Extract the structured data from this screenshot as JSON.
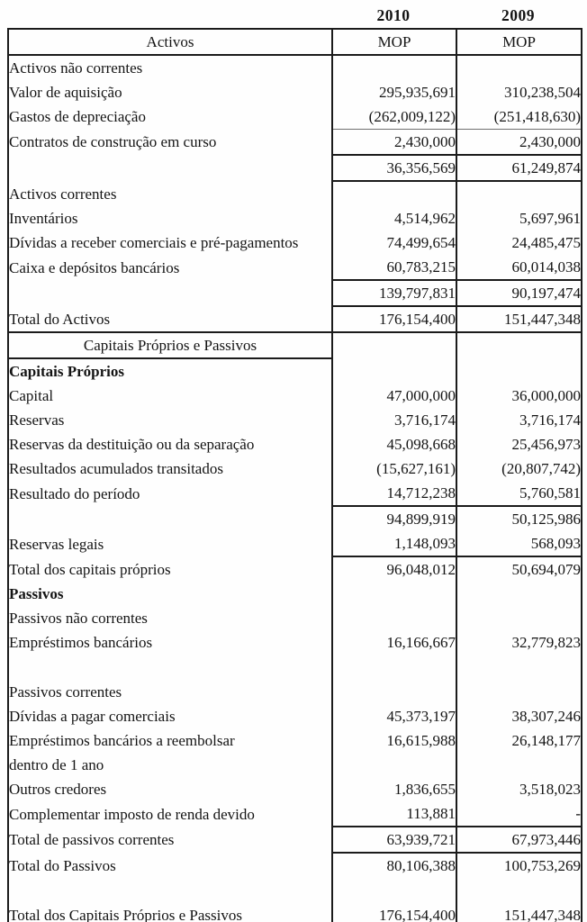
{
  "page": {
    "years": [
      "2010",
      "2009"
    ]
  },
  "table": {
    "rows": [
      {
        "label": "Activos",
        "v2010": "MOP",
        "v2009": "MOP",
        "center": true,
        "centerVals": true,
        "fullBottom": true
      },
      {
        "label": "Activos não correntes"
      },
      {
        "label": "Valor de aquisição",
        "v2010": "295,935,691",
        "v2009": "310,238,504"
      },
      {
        "label": "Gastos de depreciação",
        "v2010": "(262,009,122)",
        "v2009": "(251,418,630)"
      },
      {
        "label": "Contratos de construção em curso",
        "v2010": "2,430,000",
        "v2009": "2,430,000",
        "numTop": true,
        "numBottom": true
      },
      {
        "label": "",
        "v2010": "36,356,569",
        "v2009": "61,249,874",
        "numBottom": true
      },
      {
        "label": "Activos correntes"
      },
      {
        "label": "Inventários",
        "v2010": "4,514,962",
        "v2009": "5,697,961"
      },
      {
        "label": "Dívidas a receber comerciais e pré-pagamentos",
        "v2010": "74,499,654",
        "v2009": "24,485,475"
      },
      {
        "label": "Caixa e depósitos bancários",
        "v2010": "60,783,215",
        "v2009": "60,014,038",
        "numBottom": true
      },
      {
        "label": "",
        "v2010": "139,797,831",
        "v2009": "90,197,474",
        "numBottom": true
      },
      {
        "label": "Total do Activos",
        "v2010": "176,154,400",
        "v2009": "151,447,348",
        "fullBottom": true
      },
      {
        "label": "Capitais Próprios e Passivos",
        "center": true,
        "labelBottom": true
      },
      {
        "label": "Capitais Próprios",
        "bold": true
      },
      {
        "label": "Capital",
        "v2010": "47,000,000",
        "v2009": "36,000,000"
      },
      {
        "label": "Reservas",
        "v2010": "3,716,174",
        "v2009": "3,716,174"
      },
      {
        "label": "Reservas da destituição ou da separação",
        "v2010": "45,098,668",
        "v2009": "25,456,973"
      },
      {
        "label": "Resultados acumulados transitados",
        "v2010": "(15,627,161)",
        "v2009": "(20,807,742)"
      },
      {
        "label": "Resultado do período",
        "v2010": "14,712,238",
        "v2009": "5,760,581",
        "numBottom": true
      },
      {
        "label": "",
        "v2010": "94,899,919",
        "v2009": "50,125,986"
      },
      {
        "label": "Reservas legais",
        "v2010": "1,148,093",
        "v2009": "568,093",
        "numBottom": true
      },
      {
        "label": "Total dos capitais próprios",
        "v2010": "96,048,012",
        "v2009": "50,694,079"
      },
      {
        "label": "Passivos",
        "bold": true
      },
      {
        "label": "Passivos não correntes"
      },
      {
        "label": "Empréstimos bancários",
        "v2010": "16,166,667",
        "v2009": "32,779,823"
      },
      {
        "label": "",
        "spacer": true
      },
      {
        "label": "Passivos correntes"
      },
      {
        "label": "Dívidas a pagar comerciais",
        "v2010": "45,373,197",
        "v2009": "38,307,246"
      },
      {
        "label": "Empréstimos bancários a reembolsar",
        "v2010": "16,615,988",
        "v2009": "26,148,177"
      },
      {
        "label": "dentro de 1 ano",
        "indent": true
      },
      {
        "label": "Outros credores",
        "v2010": "1,836,655",
        "v2009": "3,518,023"
      },
      {
        "label": "Complementar imposto de renda devido",
        "v2010": "113,881",
        "v2009": "-",
        "numBottom": true
      },
      {
        "label": "Total de passivos correntes",
        "v2010": "63,939,721",
        "v2009": "67,973,446",
        "numBottom": true
      },
      {
        "label": "Total do Passivos",
        "v2010": "80,106,388",
        "v2009": "100,753,269"
      },
      {
        "label": "",
        "spacer": true
      },
      {
        "label": "Total dos Capitais Próprios e Passivos",
        "v2010": "176,154,400",
        "v2009": "151,447,348"
      }
    ]
  }
}
